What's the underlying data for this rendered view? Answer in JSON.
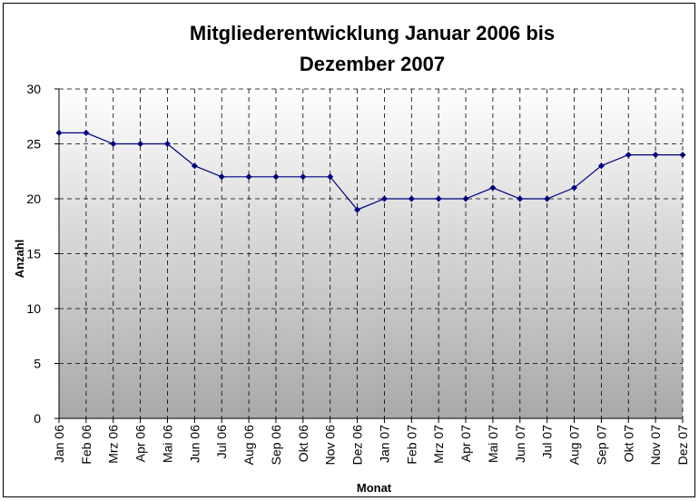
{
  "chart_data": {
    "type": "line",
    "title": "Mitgliederentwicklung Januar 2006 bis Dezember 2007",
    "x_label": "Monat",
    "y_label": "Anzahl",
    "categories": [
      "Jan 06",
      "Feb 06",
      "Mrz 06",
      "Apr 06",
      "Mai 06",
      "Jun 06",
      "Jul 06",
      "Aug 06",
      "Sep 06",
      "Okt 06",
      "Nov 06",
      "Dez 06",
      "Jan 07",
      "Feb 07",
      "Mrz 07",
      "Apr 07",
      "Mai 07",
      "Jun 07",
      "Jul 07",
      "Aug 07",
      "Sep 07",
      "Okt 07",
      "Nov 07",
      "Dez 07"
    ],
    "series": [
      {
        "name": "Anzahl",
        "color": "#000080",
        "values": [
          26,
          26,
          25,
          25,
          25,
          23,
          22,
          22,
          22,
          22,
          22,
          19,
          20,
          20,
          20,
          20,
          21,
          20,
          20,
          21,
          23,
          24,
          24,
          24
        ]
      }
    ],
    "ylim": [
      0,
      30
    ],
    "yticks": [
      0,
      5,
      10,
      15,
      20,
      25,
      30
    ],
    "grid": true
  }
}
